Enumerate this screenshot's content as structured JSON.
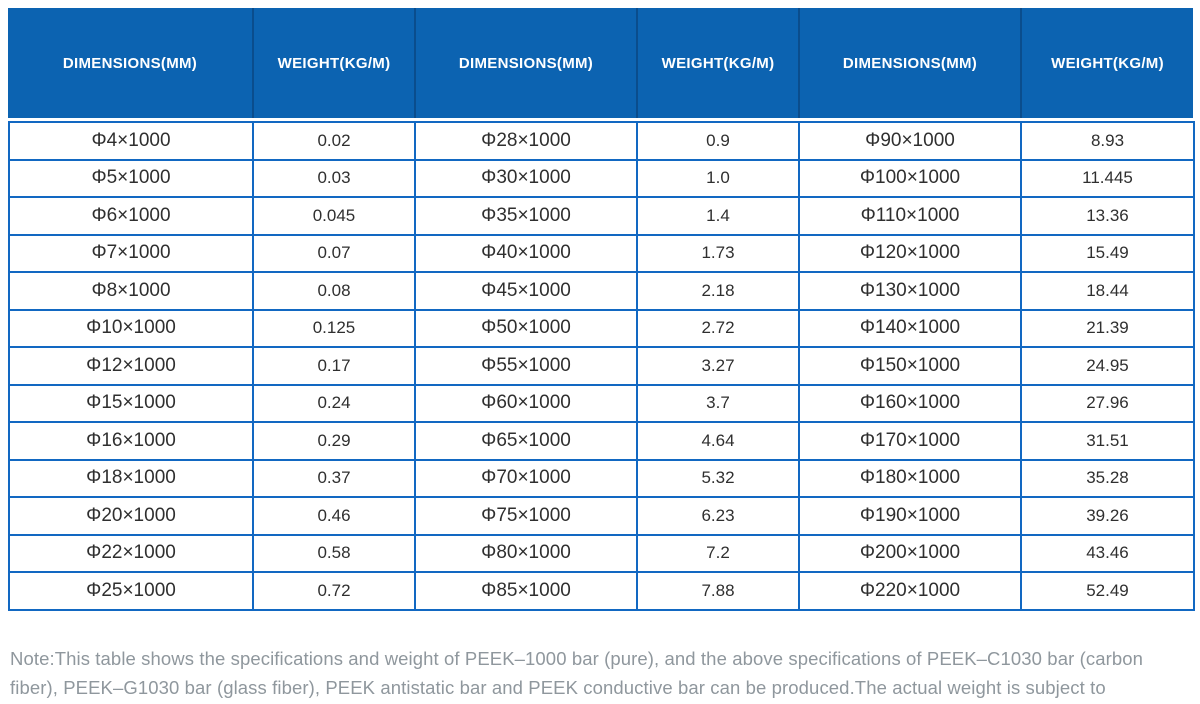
{
  "colors": {
    "header_bg": "#0c63b1",
    "header_separator": "#0a4d8d",
    "grid_border": "#1268c2",
    "cell_text": "#2f2f2f",
    "note_text": "#8f979d",
    "page_bg": "#ffffff"
  },
  "header": {
    "columns": [
      "DIMENSIONS(MM)",
      "WEIGHT(KG/M)",
      "DIMENSIONS(MM)",
      "WEIGHT(KG/M)",
      "DIMENSIONS(MM)",
      "WEIGHT(KG/M)"
    ]
  },
  "table": {
    "rows": [
      [
        "Φ4×1000",
        "0.02",
        "Φ28×1000",
        "0.9",
        "Φ90×1000",
        "8.93"
      ],
      [
        "Φ5×1000",
        "0.03",
        "Φ30×1000",
        "1.0",
        "Φ100×1000",
        "11.445"
      ],
      [
        "Φ6×1000",
        "0.045",
        "Φ35×1000",
        "1.4",
        "Φ110×1000",
        "13.36"
      ],
      [
        "Φ7×1000",
        "0.07",
        "Φ40×1000",
        "1.73",
        "Φ120×1000",
        "15.49"
      ],
      [
        "Φ8×1000",
        "0.08",
        "Φ45×1000",
        "2.18",
        "Φ130×1000",
        "18.44"
      ],
      [
        "Φ10×1000",
        "0.125",
        "Φ50×1000",
        "2.72",
        "Φ140×1000",
        "21.39"
      ],
      [
        "Φ12×1000",
        "0.17",
        "Φ55×1000",
        "3.27",
        "Φ150×1000",
        "24.95"
      ],
      [
        "Φ15×1000",
        "0.24",
        "Φ60×1000",
        "3.7",
        "Φ160×1000",
        "27.96"
      ],
      [
        "Φ16×1000",
        "0.29",
        "Φ65×1000",
        "4.64",
        "Φ170×1000",
        "31.51"
      ],
      [
        "Φ18×1000",
        "0.37",
        "Φ70×1000",
        "5.32",
        "Φ180×1000",
        "35.28"
      ],
      [
        "Φ20×1000",
        "0.46",
        "Φ75×1000",
        "6.23",
        "Φ190×1000",
        "39.26"
      ],
      [
        "Φ22×1000",
        "0.58",
        "Φ80×1000",
        "7.2",
        "Φ200×1000",
        "43.46"
      ],
      [
        "Φ25×1000",
        "0.72",
        "Φ85×1000",
        "7.88",
        "Φ220×1000",
        "52.49"
      ]
    ]
  },
  "note": {
    "text": "Note:This table shows the specifications and weight of PEEK–1000 bar (pure), and the above specifications of PEEK–C1030 bar (carbon fiber), PEEK–G1030 bar (glass fiber), PEEK antistatic bar and PEEK conductive bar can be produced.The actual weight is subject to weighting."
  }
}
